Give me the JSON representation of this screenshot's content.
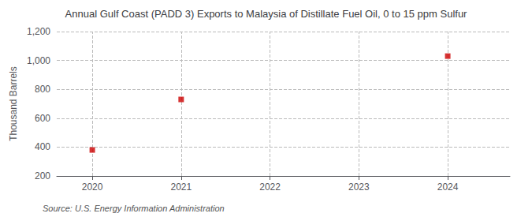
{
  "chart_data": {
    "type": "scatter",
    "title": "Annual Gulf Coast (PADD 3) Exports to Malaysia of Distillate Fuel Oil, 0 to 15 ppm Sulfur",
    "ylabel": "Thousand Barrels",
    "source": "Source: U.S. Energy Information Administration",
    "x": [
      2020,
      2021,
      2024
    ],
    "values": [
      380,
      730,
      1030
    ],
    "color": "#cc0000",
    "marker": "square",
    "xlim": [
      2019.6,
      2024.7
    ],
    "xticks": [
      2020,
      2021,
      2022,
      2023,
      2024
    ],
    "ylim": [
      200,
      1200
    ],
    "yticks": [
      200,
      400,
      600,
      800,
      {
        "value": 1000,
        "label": "1,000"
      },
      {
        "value": 1200,
        "label": "1,200"
      }
    ],
    "grid": true
  }
}
